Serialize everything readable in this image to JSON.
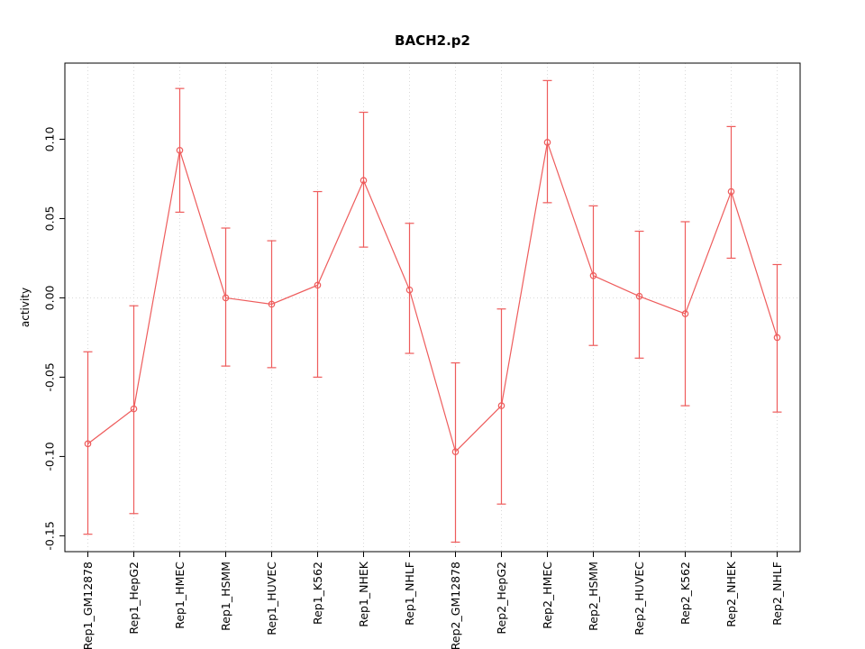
{
  "chart_data": {
    "type": "line",
    "title": "BACH2.p2",
    "xlabel": "",
    "ylabel": "activity",
    "legend": "none",
    "marker": "open-circle",
    "error_bars": true,
    "series_color": "#ee5c5c",
    "grid_color": "#d9d9d9",
    "axis_color": "#000000",
    "ylim": [
      -0.16,
      0.148
    ],
    "yticks": [
      "-0.15",
      "-0.10",
      "-0.05",
      "0.00",
      "0.05",
      "0.10"
    ],
    "grid": {
      "vertical": "dotted line at each category",
      "horizontal": "dotted line at y=0"
    },
    "categories": [
      "Rep1_GM12878",
      "Rep1_HepG2",
      "Rep1_HMEC",
      "Rep1_HSMM",
      "Rep1_HUVEC",
      "Rep1_K562",
      "Rep1_NHEK",
      "Rep1_NHLF",
      "Rep2_GM12878",
      "Rep2_HepG2",
      "Rep2_HMEC",
      "Rep2_HSMM",
      "Rep2_HUVEC",
      "Rep2_K562",
      "Rep2_NHEK",
      "Rep2_NHLF"
    ],
    "values": [
      -0.092,
      -0.07,
      0.093,
      0.0,
      -0.004,
      0.008,
      0.074,
      0.005,
      -0.097,
      -0.068,
      0.098,
      0.014,
      0.001,
      -0.01,
      0.067,
      -0.025
    ],
    "error_low": [
      -0.149,
      -0.136,
      0.054,
      -0.043,
      -0.044,
      -0.05,
      0.032,
      -0.035,
      -0.154,
      -0.13,
      0.06,
      -0.03,
      -0.038,
      -0.068,
      0.025,
      -0.072
    ],
    "error_high": [
      -0.034,
      -0.005,
      0.132,
      0.044,
      0.036,
      0.067,
      0.117,
      0.047,
      -0.041,
      -0.007,
      0.137,
      0.058,
      0.042,
      0.048,
      0.108,
      0.021
    ]
  }
}
